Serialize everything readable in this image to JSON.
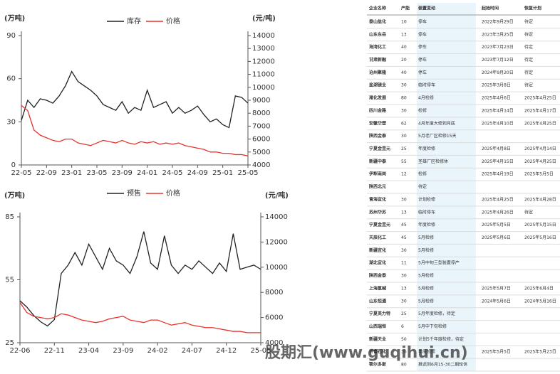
{
  "chart_data": [
    {
      "type": "line",
      "y_label": "(万吨)",
      "y2_label": "(元/吨)",
      "categories": [
        "22-05",
        null,
        null,
        null,
        "22-09",
        null,
        null,
        null,
        "23-01",
        null,
        null,
        null,
        "23-05",
        null,
        null,
        null,
        "23-09",
        null,
        null,
        null,
        "24-01",
        null,
        null,
        null,
        "24-05",
        null,
        null,
        null,
        "24-09",
        null,
        null,
        null,
        "25-01",
        null,
        null,
        null,
        "25-05"
      ],
      "series": [
        {
          "name": "库存",
          "color": "#222222",
          "values": [
            31,
            45,
            40,
            46,
            45,
            43,
            48,
            55,
            65,
            58,
            55,
            52,
            48,
            42,
            40,
            38,
            44,
            36,
            40,
            38,
            52,
            40,
            42,
            44,
            36,
            40,
            36,
            38,
            41,
            35,
            30,
            32,
            28,
            26,
            48,
            47,
            43
          ]
        },
        {
          "name": "价格",
          "color": "#e8322b",
          "axis": "y2",
          "values": [
            8600,
            8200,
            6700,
            6300,
            6100,
            5900,
            5800,
            6000,
            6000,
            5700,
            5600,
            5500,
            5700,
            5900,
            5800,
            5700,
            5900,
            5700,
            5600,
            5800,
            5700,
            5800,
            5600,
            5700,
            5600,
            5700,
            5500,
            5400,
            5300,
            5200,
            5000,
            5000,
            4900,
            4900,
            4800,
            4800,
            4700
          ]
        }
      ],
      "ylim": [
        0,
        90
      ],
      "yticks": [
        0,
        30,
        60,
        90
      ],
      "y2lim": [
        4000,
        14000
      ],
      "y2ticks": [
        4000,
        5000,
        6000,
        7000,
        8000,
        9000,
        10000,
        11000,
        12000,
        13000,
        14000
      ]
    },
    {
      "type": "line",
      "y_label": "(万吨)",
      "y2_label": "(元/吨)",
      "categories": [
        "22-06",
        null,
        null,
        null,
        null,
        "22-11",
        null,
        null,
        null,
        null,
        "23-04",
        null,
        null,
        null,
        null,
        "23-09",
        null,
        null,
        null,
        null,
        "24-02",
        null,
        null,
        null,
        null,
        "24-07",
        null,
        null,
        null,
        null,
        "24-12",
        null,
        null,
        null,
        null,
        "25-05"
      ],
      "series": [
        {
          "name": "预售",
          "color": "#222222",
          "values": [
            45,
            42,
            38,
            35,
            33,
            36,
            58,
            62,
            68,
            62,
            72,
            66,
            60,
            70,
            64,
            62,
            58,
            66,
            78,
            63,
            60,
            76,
            62,
            58,
            62,
            60,
            64,
            61,
            58,
            63,
            59,
            77,
            60,
            61,
            62,
            60
          ]
        },
        {
          "name": "价格",
          "color": "#e8322b",
          "axis": "y2",
          "values": [
            7200,
            6400,
            6100,
            6000,
            5900,
            6000,
            6300,
            6200,
            6000,
            5800,
            5700,
            5600,
            5700,
            5900,
            6000,
            6100,
            5800,
            5700,
            5600,
            5800,
            5800,
            5600,
            5400,
            5500,
            5600,
            5400,
            5300,
            5200,
            5200,
            5100,
            5000,
            4900,
            4900,
            4800,
            4800,
            4800
          ]
        }
      ],
      "ylim": [
        25,
        85
      ],
      "yticks": [
        25,
        55,
        85
      ],
      "y2lim": [
        4000,
        14000
      ],
      "y2ticks": [
        4000,
        6000,
        8000,
        10000,
        12000,
        14000
      ]
    }
  ],
  "table": {
    "header": [
      "企业名称",
      "产能",
      "装置变动",
      "起始时间",
      "恢复计划"
    ],
    "rows": [
      {
        "name": "泰山盐化",
        "cap": "10",
        "change": "停车",
        "start": "2022年9月29日",
        "plan": "待定"
      },
      {
        "name": "山东东岳",
        "cap": "13",
        "change": "停车",
        "start": "2023年3月25日",
        "plan": "待定"
      },
      {
        "name": "海湾化工",
        "cap": "40",
        "change": "停车",
        "start": "2023年7月23日",
        "plan": "待定"
      },
      {
        "name": "甘肃新融",
        "cap": "20",
        "change": "停车",
        "start": "2023年7月12日",
        "plan": "待定"
      },
      {
        "name": "沧州聚隆",
        "cap": "40",
        "change": "停车",
        "start": "2024年9月20日",
        "plan": "待定"
      },
      {
        "name": "盐湖镁业",
        "cap": "30",
        "change": "临时停车",
        "start": "2025年3月8日",
        "plan": "待定"
      },
      {
        "name": "潍化发展",
        "cap": "80",
        "change": "4月检修",
        "start": "2025年4月6日",
        "plan": "2025年4月25日"
      },
      {
        "name": "四川金路",
        "cap": "30",
        "change": "检修",
        "start": "2025年4月14日",
        "plan": "2025年4月17日"
      },
      {
        "name": "安徽华塑",
        "cap": "62",
        "change": "4月年度大修到月底",
        "start": "2025年4月10日",
        "plan": "2025年4月25日"
      },
      {
        "name": "陕西金泰",
        "cap": "30",
        "change": "5月老厂区检修15天"
      },
      {
        "name": "宁夏金昱元",
        "cap": "25",
        "change": "年度检修",
        "start": "2025年4月8日",
        "plan": "2025年4月14日"
      },
      {
        "name": "新疆中泰",
        "cap": "55",
        "change": "圣雄厂区检修休",
        "start": "2025年4月15日",
        "plan": "2025年4月25日"
      },
      {
        "name": "伊犁南岗",
        "cap": "12",
        "change": "检修",
        "start": "2025年4月19日",
        "plan": "2025年5月5日"
      },
      {
        "name": "陕西北元",
        "change": "待定"
      },
      {
        "name": "青海宜化",
        "cap": "30",
        "change": "计划检修",
        "start": "2025年4月25日",
        "plan": "2025年4月28日"
      },
      {
        "name": "苏州华苏",
        "cap": "13",
        "change": "临时停车",
        "start": "2025年4月26日",
        "plan": "待定"
      },
      {
        "name": "宁夏金昱元",
        "cap": "45",
        "change": "年度检修",
        "start": "2025年5月5日",
        "plan": "2025年5月15日"
      },
      {
        "name": "天辰化工",
        "cap": "45",
        "change": "5月检修",
        "start": "2025年5月6日",
        "plan": "2025年5月16日"
      },
      {
        "name": "新疆宜化",
        "cap": "30",
        "change": "5月检修"
      },
      {
        "name": "湖北宜化",
        "cap": "11",
        "change": "5月中旬三型装置停产"
      },
      {
        "name": "陕西金泰",
        "cap": "30",
        "change": "5月检修"
      },
      {
        "name": "上海氯碱",
        "cap": "13",
        "change": "5月检修",
        "start": "2025年5月7日",
        "plan": "2025年6月4日"
      },
      {
        "name": "山东恒通",
        "cap": "30",
        "change": "5月检修",
        "start": "2024年5月6日",
        "plan": "2024年5月16日"
      },
      {
        "name": "宁夏英力特",
        "cap": "25",
        "change": "5月年度检修，待定"
      },
      {
        "name": "山西瑞恒",
        "cap": "6",
        "change": "5月中下旬检修"
      },
      {
        "name": "新疆天业",
        "cap": "50",
        "change": "计划5千年度检修，待定"
      },
      {
        "name": "齐鲁石化",
        "cap": "36",
        "change": "年度检修",
        "start": "2025年5月5日",
        "plan": "2025年5月23日"
      },
      {
        "name": "鄂尔多斯",
        "cap": "80",
        "change": "推迟到6月15-30二期轮休"
      }
    ]
  },
  "watermark": "股期汇(www.guqihui.cn)"
}
